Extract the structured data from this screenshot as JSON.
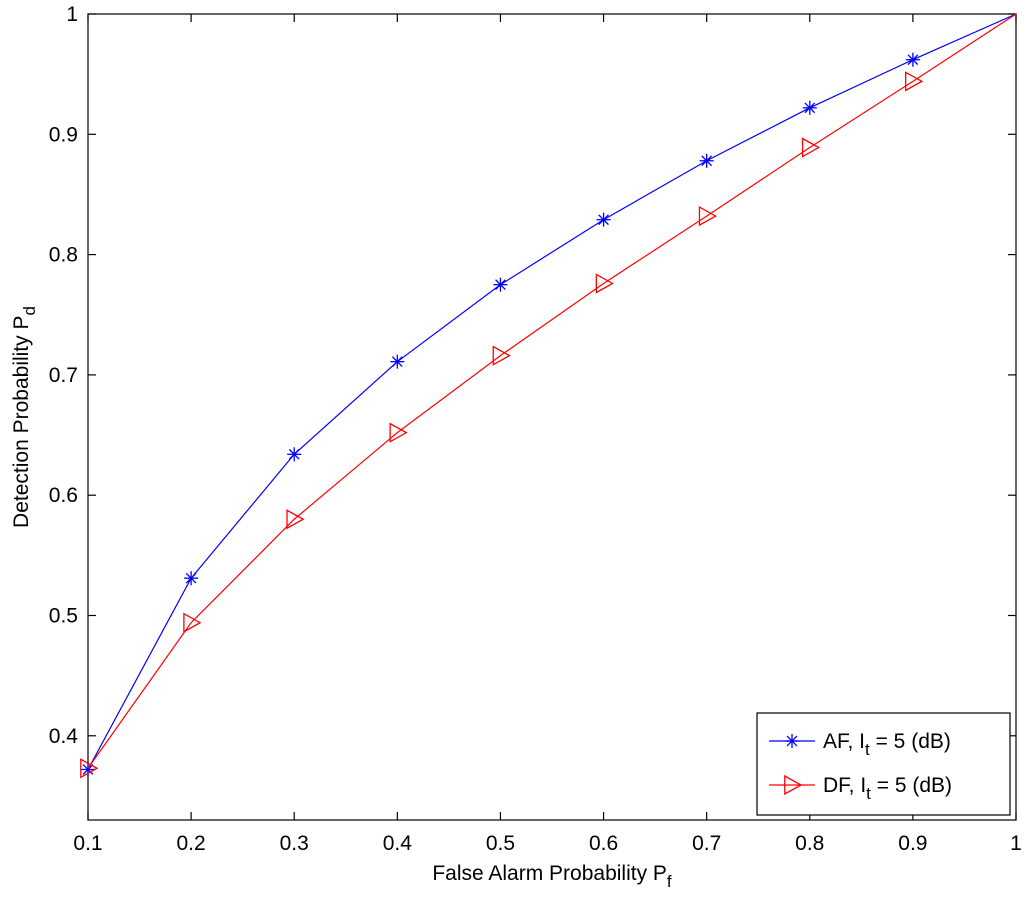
{
  "chart_data": {
    "type": "line",
    "title": "",
    "xlabel": "False Alarm Probability P",
    "xlabel_sub": "f",
    "ylabel": "Detection Probability P",
    "ylabel_sub": "d",
    "xlim": [
      0.1,
      1
    ],
    "ylim": [
      0.33,
      1
    ],
    "xticks": [
      0.1,
      0.2,
      0.3,
      0.4,
      0.5,
      0.6,
      0.7,
      0.8,
      0.9,
      1
    ],
    "xtick_labels": [
      "0.1",
      "0.2",
      "0.3",
      "0.4",
      "0.5",
      "0.6",
      "0.7",
      "0.8",
      "0.9",
      "1"
    ],
    "yticks": [
      0.4,
      0.5,
      0.6,
      0.7,
      0.8,
      0.9,
      1
    ],
    "ytick_labels": [
      "0.4",
      "0.5",
      "0.6",
      "0.7",
      "0.8",
      "0.9",
      "1"
    ],
    "grid": false,
    "legend_position": "bottom-right",
    "series": [
      {
        "name": "AF, I_t = 5 (dB)",
        "legend_main": "AF, I",
        "legend_sub": "t",
        "legend_tail": " = 5 (dB)",
        "color": "#0000ff",
        "marker": "asterisk",
        "x": [
          0.1,
          0.2,
          0.3,
          0.4,
          0.5,
          0.6,
          0.7,
          0.8,
          0.9,
          1.0
        ],
        "y": [
          0.372,
          0.531,
          0.634,
          0.711,
          0.775,
          0.829,
          0.878,
          0.922,
          0.962,
          1.0
        ]
      },
      {
        "name": "DF, I_t = 5 (dB)",
        "legend_main": "DF, I",
        "legend_sub": "t",
        "legend_tail": " = 5 (dB)",
        "color": "#ff0000",
        "marker": "triangle-right",
        "x": [
          0.1,
          0.2,
          0.3,
          0.4,
          0.5,
          0.6,
          0.7,
          0.8,
          0.9,
          1.0
        ],
        "y": [
          0.373,
          0.494,
          0.58,
          0.652,
          0.716,
          0.776,
          0.832,
          0.889,
          0.944,
          1.0
        ]
      }
    ]
  }
}
